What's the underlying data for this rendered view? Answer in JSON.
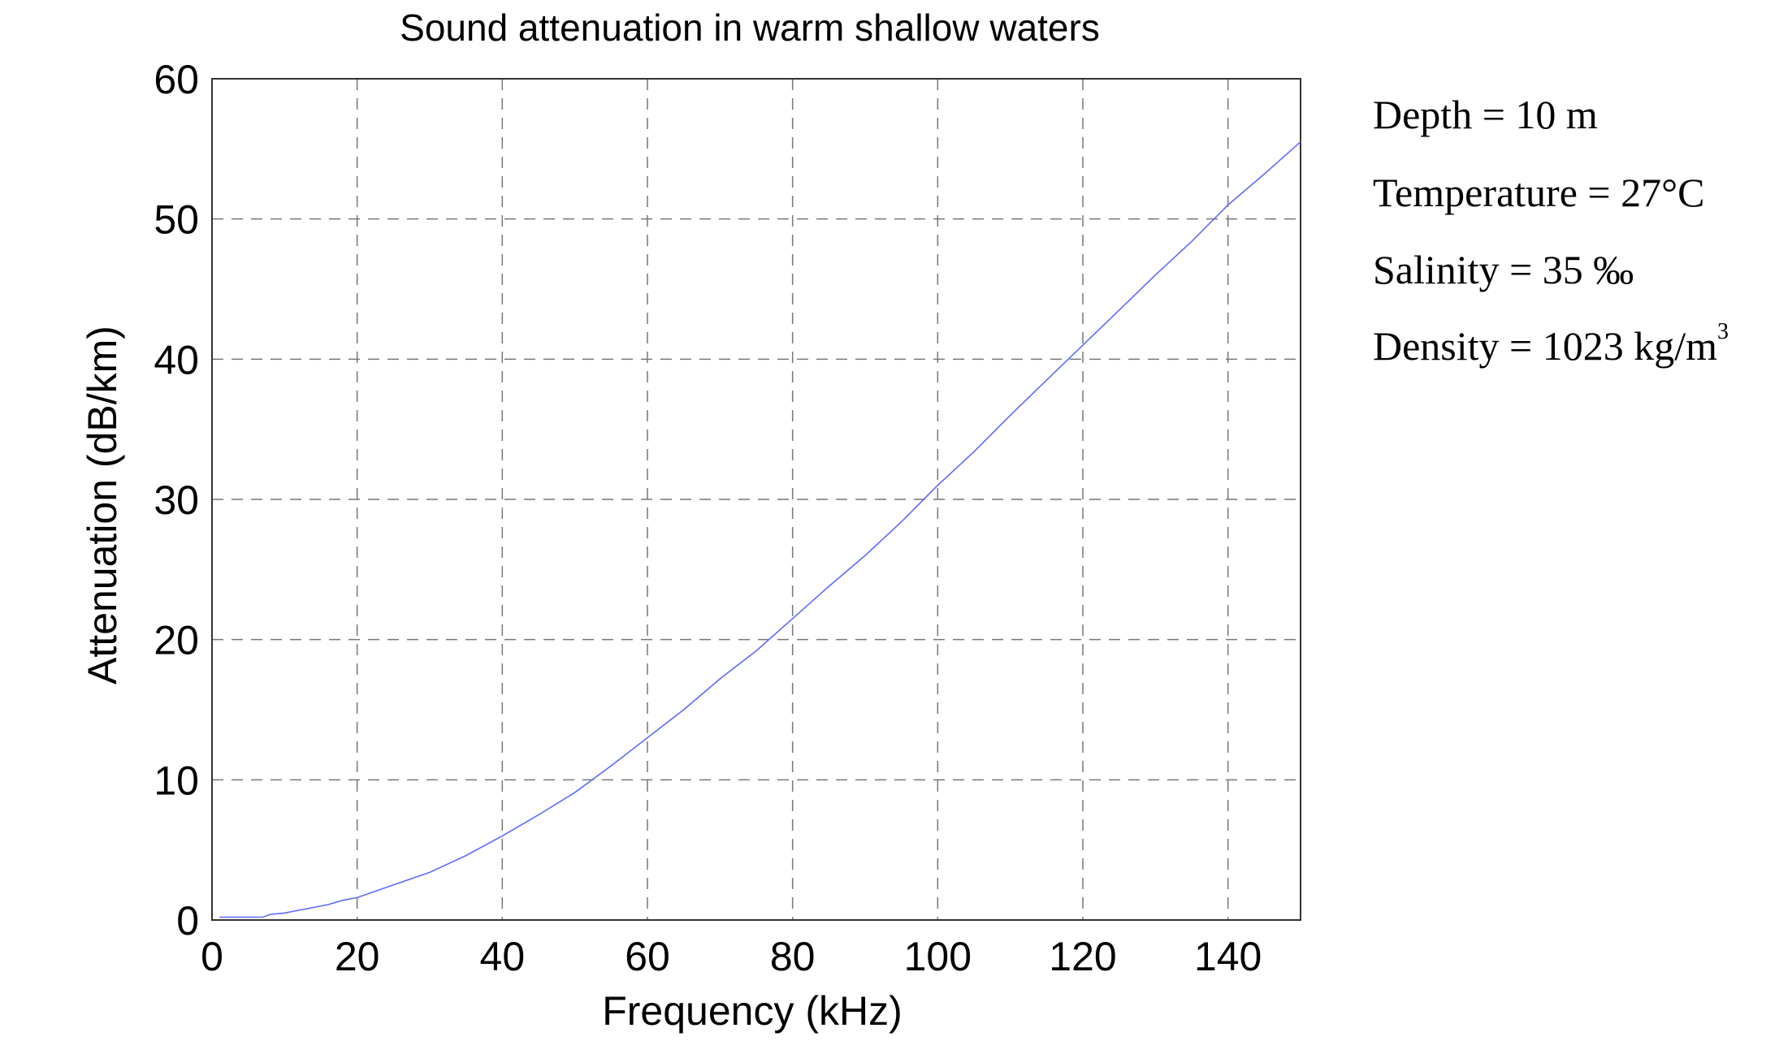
{
  "chart_data": {
    "type": "line",
    "title": "Sound attenuation in warm shallow waters",
    "xlabel": "Frequency (kHz)",
    "ylabel": "Attenuation (dB/km)",
    "xlim": [
      0,
      150
    ],
    "ylim": [
      0,
      60
    ],
    "xticks": [
      0,
      20,
      40,
      60,
      80,
      100,
      120,
      140
    ],
    "yticks": [
      0,
      10,
      20,
      30,
      40,
      50,
      60
    ],
    "grid": true,
    "series": [
      {
        "name": "Attenuation",
        "color": "#5b6bff",
        "x": [
          1,
          7,
          8,
          10,
          12,
          14,
          16,
          18,
          20,
          25,
          30,
          35,
          40,
          45,
          50,
          55,
          60,
          65,
          70,
          75,
          80,
          85,
          90,
          95,
          100,
          105,
          110,
          115,
          120,
          125,
          130,
          135,
          140,
          145,
          150
        ],
        "y": [
          0.2,
          0.2,
          0.4,
          0.5,
          0.7,
          0.9,
          1.1,
          1.4,
          1.6,
          2.5,
          3.4,
          4.6,
          6.0,
          7.5,
          9.1,
          11.0,
          13.0,
          15.0,
          17.2,
          19.2,
          21.5,
          23.8,
          26.0,
          28.4,
          31.0,
          33.4,
          36.0,
          38.5,
          41.0,
          43.5,
          46.0,
          48.4,
          51.0,
          53.2,
          55.5
        ]
      }
    ],
    "annotations": {
      "depth": "Depth = 10 m",
      "temperature": "Temperature = 27°C",
      "salinity": "Salinity = 35 ‰",
      "density": "Density = 1023 kg/m",
      "density_sup": "3"
    }
  }
}
